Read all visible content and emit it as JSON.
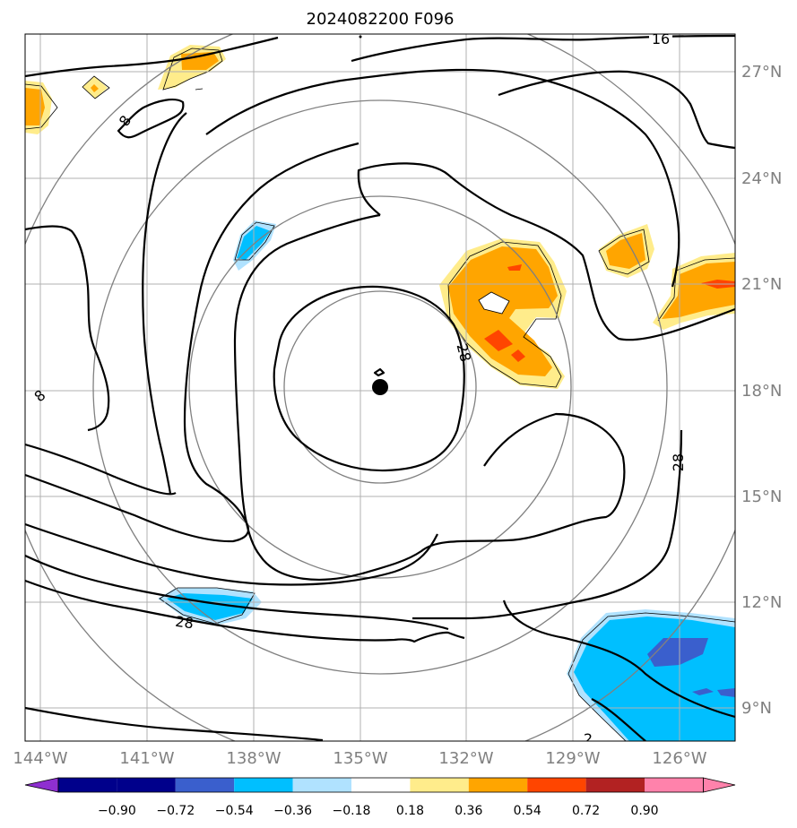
{
  "title": "2024082200 F096",
  "lon_labels": [
    "144°W",
    "141°W",
    "138°W",
    "135°W",
    "132°W",
    "129°W",
    "126°W"
  ],
  "lat_labels": [
    "27°N",
    "24°N",
    "21°N",
    "18°N",
    "15°N",
    "12°N",
    "9°N"
  ],
  "contour_labels": [
    "16",
    "8",
    "8",
    "28",
    "28",
    "28",
    "2"
  ],
  "colorbar": {
    "tick_labels": [
      "−0.90",
      "−0.72",
      "−0.54",
      "−0.36",
      "−0.18",
      "0.18",
      "0.36",
      "0.54",
      "0.72",
      "0.90"
    ],
    "colors": [
      "#8e2fd0",
      "#00008b",
      "#3a5fcd",
      "#00bfff",
      "#b0e2ff",
      "#ffffff",
      "#ffec8b",
      "#ffa500",
      "#ff4500",
      "#b22222",
      "#ff82ab"
    ]
  },
  "colors": {
    "gridline": "#b0b0b0",
    "range_ring": "#808080",
    "contour": "#000000"
  }
}
